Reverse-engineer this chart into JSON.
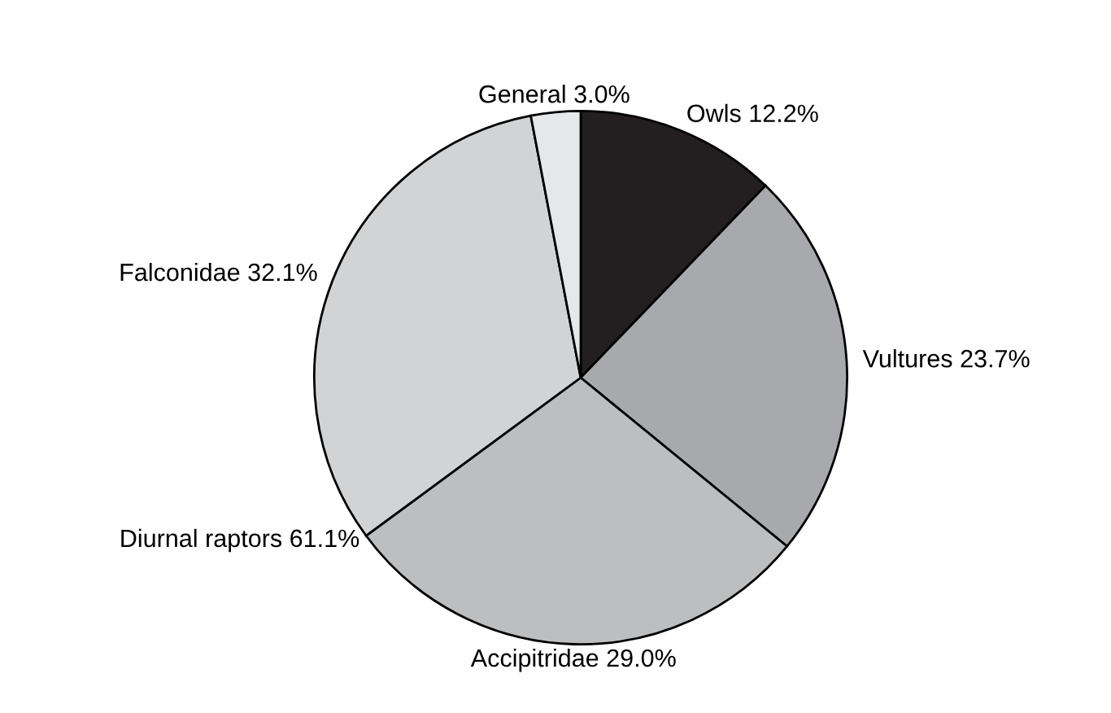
{
  "chart_data": {
    "type": "pie",
    "categories": [
      "Owls",
      "Vultures",
      "Accipitridae",
      "Falconidae",
      "General"
    ],
    "values": [
      12.2,
      23.7,
      29.0,
      32.1,
      3.0
    ],
    "value_labels": [
      "12.2%",
      "23.7%",
      "29.0%",
      "32.1%",
      "3.0%"
    ],
    "colors": [
      "#231f20",
      "#a7a9ac",
      "#bcbec0",
      "#d1d3d4",
      "#e6e7e8"
    ],
    "annotations": [
      "Diurnal raptors 61.1%"
    ],
    "legend": false
  }
}
